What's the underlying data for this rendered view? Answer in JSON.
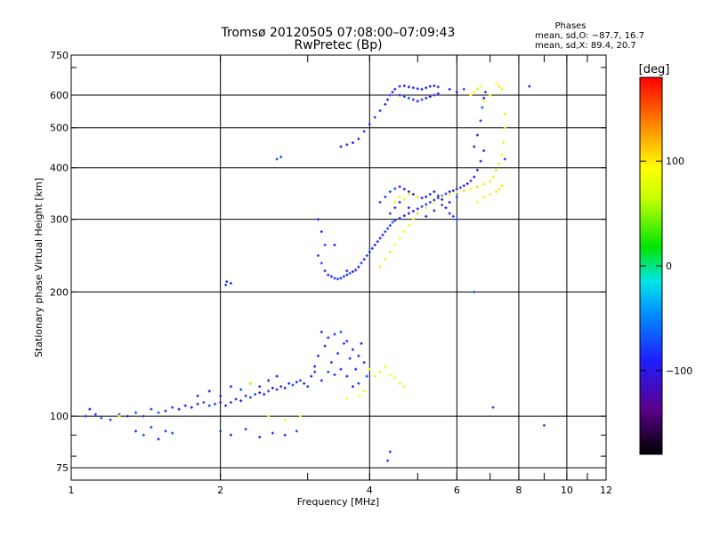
{
  "chart_data": {
    "type": "scatter",
    "title": "Tromsø 20120505 07:08:00–07:09:43",
    "subtitle": "RwPretec (Bp)",
    "xlabel": "Frequency [MHz]",
    "ylabel": "Stationary phase Virtual Height [km]",
    "x_scale": "log",
    "y_scale": "log",
    "xlim": [
      1,
      12
    ],
    "ylim": [
      70,
      750
    ],
    "x_ticks": [
      1,
      2,
      4,
      6,
      8,
      10,
      12
    ],
    "y_ticks": [
      75,
      100,
      200,
      300,
      400,
      500,
      600,
      750
    ],
    "x_ticklabels": [
      "1",
      "2",
      "4",
      "6",
      "8",
      "10",
      "12"
    ],
    "y_ticklabels": [
      "75",
      "100",
      "200",
      "300",
      "400",
      "500",
      "600",
      "750"
    ],
    "grid": true,
    "phases_box": {
      "title": "Phases",
      "line_o": "mean, sd,O: −87.7, 16.7",
      "line_x": "mean, sd,X:  89.4, 20.7"
    },
    "colorbar": {
      "label": "[deg]",
      "ticks": [
        100,
        0,
        -100
      ],
      "tick_labels": [
        "100",
        "0",
        "−100"
      ],
      "range": [
        -180,
        180
      ]
    },
    "series": [
      {
        "mode": "O",
        "mean_phase": -87.7,
        "sd_phase": 16.7,
        "points": [
          [
            1.07,
            100
          ],
          [
            1.09,
            104
          ],
          [
            1.12,
            101
          ],
          [
            1.15,
            99
          ],
          [
            1.2,
            98
          ],
          [
            1.25,
            101
          ],
          [
            1.3,
            100
          ],
          [
            1.35,
            102
          ],
          [
            1.4,
            100
          ],
          [
            1.45,
            104
          ],
          [
            1.5,
            102
          ],
          [
            1.55,
            103
          ],
          [
            1.6,
            105
          ],
          [
            1.65,
            104
          ],
          [
            1.7,
            106
          ],
          [
            1.75,
            105
          ],
          [
            1.8,
            107
          ],
          [
            1.85,
            108
          ],
          [
            1.9,
            106
          ],
          [
            1.95,
            107
          ],
          [
            2.0,
            108
          ],
          [
            2.05,
            106
          ],
          [
            2.1,
            108
          ],
          [
            2.15,
            110
          ],
          [
            2.2,
            109
          ],
          [
            2.25,
            112
          ],
          [
            2.3,
            111
          ],
          [
            2.35,
            113
          ],
          [
            2.4,
            114
          ],
          [
            2.45,
            113
          ],
          [
            2.5,
            115
          ],
          [
            2.55,
            117
          ],
          [
            2.6,
            116
          ],
          [
            2.65,
            118
          ],
          [
            2.7,
            117
          ],
          [
            2.75,
            120
          ],
          [
            2.8,
            119
          ],
          [
            2.85,
            121
          ],
          [
            2.9,
            122
          ],
          [
            2.95,
            120
          ],
          [
            1.35,
            92
          ],
          [
            1.4,
            90
          ],
          [
            1.45,
            94
          ],
          [
            1.5,
            88
          ],
          [
            1.55,
            92
          ],
          [
            1.6,
            91
          ],
          [
            2.0,
            92
          ],
          [
            2.1,
            90
          ],
          [
            2.25,
            93
          ],
          [
            2.4,
            89
          ],
          [
            2.55,
            91
          ],
          [
            2.7,
            90
          ],
          [
            2.85,
            92
          ],
          [
            1.8,
            112
          ],
          [
            1.9,
            115
          ],
          [
            2.0,
            112
          ],
          [
            2.1,
            118
          ],
          [
            2.2,
            116
          ],
          [
            2.3,
            120
          ],
          [
            2.4,
            118
          ],
          [
            2.5,
            122
          ],
          [
            2.6,
            125
          ],
          [
            3.0,
            118
          ],
          [
            3.05,
            125
          ],
          [
            3.1,
            132
          ],
          [
            3.15,
            140
          ],
          [
            3.2,
            122
          ],
          [
            3.25,
            148
          ],
          [
            3.3,
            128
          ],
          [
            3.35,
            135
          ],
          [
            3.4,
            158
          ],
          [
            3.45,
            142
          ],
          [
            3.5,
            130
          ],
          [
            3.55,
            150
          ],
          [
            3.6,
            125
          ],
          [
            3.65,
            138
          ],
          [
            3.7,
            145
          ],
          [
            3.75,
            130
          ],
          [
            3.8,
            120
          ],
          [
            3.85,
            150
          ],
          [
            3.9,
            135
          ],
          [
            3.95,
            125
          ],
          [
            3.2,
            160
          ],
          [
            3.3,
            155
          ],
          [
            3.5,
            160
          ],
          [
            3.6,
            152
          ],
          [
            3.7,
            118
          ],
          [
            3.1,
            128
          ],
          [
            3.4,
            126
          ],
          [
            3.8,
            140
          ],
          [
            2.05,
            208
          ],
          [
            2.06,
            212
          ],
          [
            2.1,
            210
          ],
          [
            3.15,
            245
          ],
          [
            3.2,
            235
          ],
          [
            3.25,
            225
          ],
          [
            3.3,
            220
          ],
          [
            3.35,
            218
          ],
          [
            3.4,
            216
          ],
          [
            3.45,
            215
          ],
          [
            3.5,
            216
          ],
          [
            3.55,
            218
          ],
          [
            3.6,
            220
          ],
          [
            3.65,
            222
          ],
          [
            3.7,
            224
          ],
          [
            3.75,
            226
          ],
          [
            3.8,
            230
          ],
          [
            3.85,
            235
          ],
          [
            3.9,
            240
          ],
          [
            3.95,
            245
          ],
          [
            4.0,
            250
          ],
          [
            4.05,
            255
          ],
          [
            4.1,
            260
          ],
          [
            4.15,
            265
          ],
          [
            4.2,
            270
          ],
          [
            4.25,
            275
          ],
          [
            4.3,
            280
          ],
          [
            4.35,
            285
          ],
          [
            4.4,
            290
          ],
          [
            4.45,
            295
          ],
          [
            4.5,
            298
          ],
          [
            4.6,
            302
          ],
          [
            4.7,
            306
          ],
          [
            4.8,
            310
          ],
          [
            4.9,
            314
          ],
          [
            5.0,
            318
          ],
          [
            5.1,
            322
          ],
          [
            5.2,
            326
          ],
          [
            5.3,
            330
          ],
          [
            5.4,
            334
          ],
          [
            5.5,
            338
          ],
          [
            5.6,
            342
          ],
          [
            5.7,
            346
          ],
          [
            5.8,
            350
          ],
          [
            5.9,
            352
          ],
          [
            6.0,
            355
          ],
          [
            6.1,
            358
          ],
          [
            6.2,
            362
          ],
          [
            6.3,
            366
          ],
          [
            6.4,
            372
          ],
          [
            6.5,
            380
          ],
          [
            6.6,
            395
          ],
          [
            6.7,
            415
          ],
          [
            6.8,
            440
          ],
          [
            3.15,
            300
          ],
          [
            3.2,
            280
          ],
          [
            3.25,
            260
          ],
          [
            4.2,
            330
          ],
          [
            4.3,
            340
          ],
          [
            4.4,
            350
          ],
          [
            4.5,
            356
          ],
          [
            4.6,
            360
          ],
          [
            4.7,
            355
          ],
          [
            4.8,
            350
          ],
          [
            4.9,
            345
          ],
          [
            5.0,
            340
          ],
          [
            5.1,
            338
          ],
          [
            5.2,
            340
          ],
          [
            5.3,
            345
          ],
          [
            5.4,
            350
          ],
          [
            5.5,
            342
          ],
          [
            5.6,
            335
          ],
          [
            5.7,
            320
          ],
          [
            5.8,
            310
          ],
          [
            5.9,
            305
          ],
          [
            6.0,
            300
          ],
          [
            4.4,
            310
          ],
          [
            4.5,
            320
          ],
          [
            4.6,
            330
          ],
          [
            4.8,
            320
          ],
          [
            5.0,
            310
          ],
          [
            5.2,
            305
          ],
          [
            5.4,
            315
          ],
          [
            5.6,
            325
          ],
          [
            5.8,
            330
          ],
          [
            6.0,
            340
          ],
          [
            6.5,
            450
          ],
          [
            6.6,
            480
          ],
          [
            6.7,
            520
          ],
          [
            6.75,
            560
          ],
          [
            6.8,
            590
          ],
          [
            6.85,
            610
          ],
          [
            3.5,
            450
          ],
          [
            3.6,
            455
          ],
          [
            3.7,
            460
          ],
          [
            3.8,
            470
          ],
          [
            3.9,
            490
          ],
          [
            4.0,
            510
          ],
          [
            4.1,
            530
          ],
          [
            4.2,
            550
          ],
          [
            4.3,
            570
          ],
          [
            4.35,
            585
          ],
          [
            4.4,
            600
          ],
          [
            4.45,
            610
          ],
          [
            4.5,
            620
          ],
          [
            4.6,
            630
          ],
          [
            4.7,
            632
          ],
          [
            4.8,
            628
          ],
          [
            4.9,
            625
          ],
          [
            5.0,
            622
          ],
          [
            5.1,
            620
          ],
          [
            5.2,
            625
          ],
          [
            5.3,
            630
          ],
          [
            5.4,
            632
          ],
          [
            5.5,
            628
          ],
          [
            4.6,
            600
          ],
          [
            4.7,
            595
          ],
          [
            4.8,
            590
          ],
          [
            4.9,
            585
          ],
          [
            5.0,
            580
          ],
          [
            5.1,
            585
          ],
          [
            5.2,
            590
          ],
          [
            5.3,
            595
          ],
          [
            5.4,
            600
          ],
          [
            5.5,
            605
          ],
          [
            2.6,
            420
          ],
          [
            2.65,
            425
          ],
          [
            3.4,
            260
          ],
          [
            3.6,
            225
          ],
          [
            5.8,
            620
          ],
          [
            6.0,
            610
          ],
          [
            6.2,
            620
          ],
          [
            8.4,
            630
          ],
          [
            7.1,
            105
          ],
          [
            9.0,
            95
          ],
          [
            6.5,
            200
          ],
          [
            7.5,
            420
          ],
          [
            4.4,
            82
          ],
          [
            4.35,
            78
          ]
        ]
      },
      {
        "mode": "X",
        "mean_phase": 89.4,
        "sd_phase": 20.7,
        "points": [
          [
            4.2,
            230
          ],
          [
            4.3,
            240
          ],
          [
            4.4,
            250
          ],
          [
            4.5,
            260
          ],
          [
            4.6,
            270
          ],
          [
            4.7,
            280
          ],
          [
            4.8,
            290
          ],
          [
            4.9,
            300
          ],
          [
            5.0,
            310
          ],
          [
            5.2,
            320
          ],
          [
            5.4,
            330
          ],
          [
            5.6,
            340
          ],
          [
            5.8,
            345
          ],
          [
            6.0,
            350
          ],
          [
            6.2,
            352
          ],
          [
            6.4,
            355
          ],
          [
            6.6,
            360
          ],
          [
            6.8,
            365
          ],
          [
            7.0,
            370
          ],
          [
            7.1,
            380
          ],
          [
            7.2,
            395
          ],
          [
            7.3,
            410
          ],
          [
            7.4,
            430
          ],
          [
            7.45,
            460
          ],
          [
            7.5,
            500
          ],
          [
            7.5,
            540
          ],
          [
            6.6,
            330
          ],
          [
            6.8,
            340
          ],
          [
            7.0,
            345
          ],
          [
            7.2,
            350
          ],
          [
            7.3,
            355
          ],
          [
            7.4,
            362
          ],
          [
            4.5,
            330
          ],
          [
            4.6,
            340
          ],
          [
            4.7,
            335
          ],
          [
            4.8,
            345
          ],
          [
            5.0,
            340
          ],
          [
            6.4,
            600
          ],
          [
            6.5,
            610
          ],
          [
            6.6,
            620
          ],
          [
            6.7,
            630
          ],
          [
            7.2,
            640
          ],
          [
            7.3,
            630
          ],
          [
            7.4,
            620
          ],
          [
            4.0,
            130
          ],
          [
            4.1,
            125
          ],
          [
            4.2,
            128
          ],
          [
            4.3,
            132
          ],
          [
            4.4,
            126
          ],
          [
            4.5,
            124
          ],
          [
            3.9,
            115
          ],
          [
            4.6,
            120
          ],
          [
            4.7,
            118
          ],
          [
            3.6,
            110
          ],
          [
            3.8,
            112
          ],
          [
            2.9,
            100
          ],
          [
            2.5,
            100
          ],
          [
            2.7,
            98
          ],
          [
            1.25,
            100
          ],
          [
            2.3,
            120
          ],
          [
            6.8,
            580
          ],
          [
            7.0,
            600
          ]
        ]
      }
    ]
  }
}
